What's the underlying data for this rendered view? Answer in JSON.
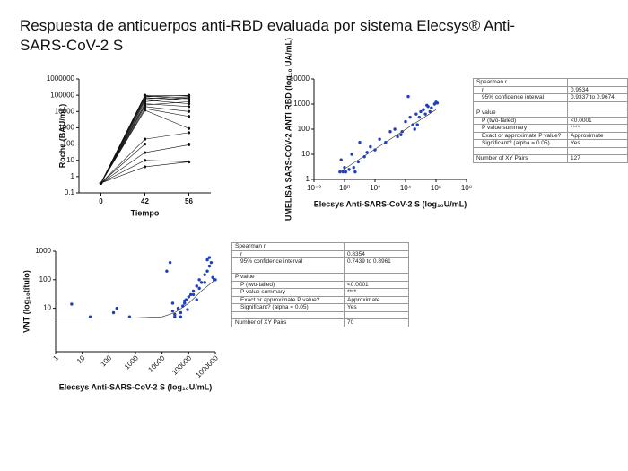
{
  "title": "Respuesta de anticuerpos anti-RBD evaluada por sistema Elecsys® Anti-SARS-CoV-2 S",
  "chart_data": [
    {
      "type": "line",
      "color": "#111111",
      "ylog": true,
      "x_label": "Tiempo",
      "y_label": "Roche (BAU/mL)",
      "categories": [
        "0",
        "42",
        "56"
      ],
      "ylim": [
        0.1,
        1000000
      ],
      "yticks": [
        0.1,
        1,
        10,
        100,
        1000,
        10000,
        100000,
        1000000
      ],
      "series": [
        {
          "values": [
            0.4,
            100000,
            90000
          ]
        },
        {
          "values": [
            0.4,
            90000,
            60000
          ]
        },
        {
          "values": [
            0.4,
            80000,
            100000
          ]
        },
        {
          "values": [
            0.4,
            70000,
            50000
          ]
        },
        {
          "values": [
            0.4,
            60000,
            80000
          ]
        },
        {
          "values": [
            0.4,
            50000,
            30000
          ]
        },
        {
          "values": [
            0.4,
            40000,
            70000
          ]
        },
        {
          "values": [
            0.4,
            30000,
            20000
          ]
        },
        {
          "values": [
            0.4,
            25000,
            40000
          ]
        },
        {
          "values": [
            0.4,
            20000,
            10000
          ]
        },
        {
          "values": [
            0.4,
            15000,
            5000
          ]
        },
        {
          "values": [
            0.4,
            12000,
            900
          ]
        },
        {
          "values": [
            0.4,
            200,
            500
          ]
        },
        {
          "values": [
            0.4,
            100,
            100
          ]
        },
        {
          "values": [
            0.4,
            30,
            90
          ]
        },
        {
          "values": [
            0.4,
            10,
            8
          ]
        },
        {
          "values": [
            0.4,
            4,
            8
          ]
        }
      ]
    },
    {
      "type": "scatter",
      "color": "#1f3fbf",
      "xlog": true,
      "ylog": true,
      "x_label": "Elecsys Anti-SARS-CoV-2 S (log₁₀U/mL)",
      "y_label": "UMELISA SARS-COV-2 ANTI RBD (log₁₀ UA/mL)",
      "xlim": [
        0.01,
        100000000
      ],
      "xticks": [
        {
          "value": 0.01,
          "label": "10⁻²"
        },
        {
          "value": 1,
          "label": "10⁰"
        },
        {
          "value": 100,
          "label": "10²"
        },
        {
          "value": 10000,
          "label": "10⁴"
        },
        {
          "value": 1000000,
          "label": "10⁶"
        },
        {
          "value": 100000000,
          "label": "10⁸"
        }
      ],
      "ylim": [
        1,
        10000
      ],
      "yticks": [
        1,
        10,
        100,
        1000,
        10000
      ],
      "x": [
        0.5,
        0.6,
        0.8,
        1,
        1.2,
        2,
        3,
        4,
        5,
        8,
        10,
        20,
        30,
        50,
        100,
        200,
        500,
        1000,
        2000,
        5000,
        10000,
        20000,
        30000,
        50000,
        80000,
        100000,
        150000,
        200000,
        300000,
        500000,
        800000,
        1000000,
        15000,
        40000,
        60000,
        250000,
        400000,
        1200000,
        6000,
        3000
      ],
      "values": [
        2,
        6,
        2,
        3,
        2,
        2.5,
        10,
        3,
        2,
        5,
        30,
        8,
        12,
        20,
        15,
        40,
        30,
        80,
        100,
        60,
        200,
        300,
        150,
        400,
        300,
        500,
        600,
        400,
        800,
        700,
        1000,
        1200,
        2000,
        100,
        150,
        900,
        500,
        1100,
        80,
        50
      ],
      "fit_line": {
        "x": [
          0.5,
          1000000
        ],
        "values": [
          2,
          600
        ]
      }
    },
    {
      "type": "scatter",
      "color": "#1f3fbf",
      "xlog": true,
      "ylog": true,
      "rotate_xticks": true,
      "x_label": "Elecsys Anti-SARS-CoV-2 S (log₁₀U/mL)",
      "y_label": "VNT (log₁₀título)",
      "xlim": [
        1,
        1000000
      ],
      "xticks": [
        1,
        10,
        100,
        1000,
        10000,
        100000,
        1000000
      ],
      "ylim": [
        0.3,
        1000
      ],
      "yticks": [
        10,
        100,
        1000
      ],
      "x": [
        4,
        20,
        150,
        200,
        600,
        15000,
        20000,
        25000,
        30000,
        40000,
        50000,
        60000,
        70000,
        80000,
        100000,
        120000,
        150000,
        200000,
        250000,
        300000,
        400000,
        500000,
        600000,
        700000,
        800000,
        1000000,
        30000,
        50000,
        90000,
        150000,
        250000,
        400000,
        600000,
        900000,
        25000,
        70000,
        200000,
        500000
      ],
      "values": [
        14,
        5,
        7,
        10,
        5,
        200,
        400,
        8,
        6,
        10,
        7,
        12,
        15,
        20,
        25,
        30,
        40,
        60,
        100,
        80,
        150,
        200,
        600,
        400,
        120,
        100,
        5,
        5,
        9,
        30,
        50,
        80,
        300,
        100,
        15,
        18,
        20,
        500
      ],
      "fit_line": {
        "x": [
          1,
          100,
          1000,
          10000,
          30000,
          100000,
          300000,
          1000000
        ],
        "values": [
          4.5,
          4.5,
          4.6,
          5,
          7,
          15,
          40,
          100
        ]
      }
    }
  ],
  "tables": [
    {
      "sections": [
        [
          [
            "Spearman r"
          ],
          [
            "r",
            "0.9534"
          ],
          [
            "95% confidence interval",
            "0.9337 to 0.9674"
          ]
        ],
        [
          [
            "P value"
          ],
          [
            "P (two-tailed)",
            "<0.0001"
          ],
          [
            "P value summary",
            "****"
          ],
          [
            "Exact or approximate P value?",
            "Approximate"
          ],
          [
            "Significant? (alpha = 0.05)",
            "Yes"
          ]
        ],
        [
          [
            "Number of XY Pairs",
            "127"
          ]
        ]
      ]
    },
    {
      "sections": [
        [
          [
            "Spearman r"
          ],
          [
            "r",
            "0.8354"
          ],
          [
            "95% confidence interval",
            "0.7439 to 0.8961"
          ]
        ],
        [
          [
            "P value"
          ],
          [
            "P (two-tailed)",
            "<0.0001"
          ],
          [
            "P value summary",
            "****"
          ],
          [
            "Exact or approximate P value?",
            "Approximate"
          ],
          [
            "Significant? (alpha = 0.05)",
            "Yes"
          ]
        ],
        [
          [
            "Number of XY Pairs",
            "70"
          ]
        ]
      ]
    }
  ]
}
